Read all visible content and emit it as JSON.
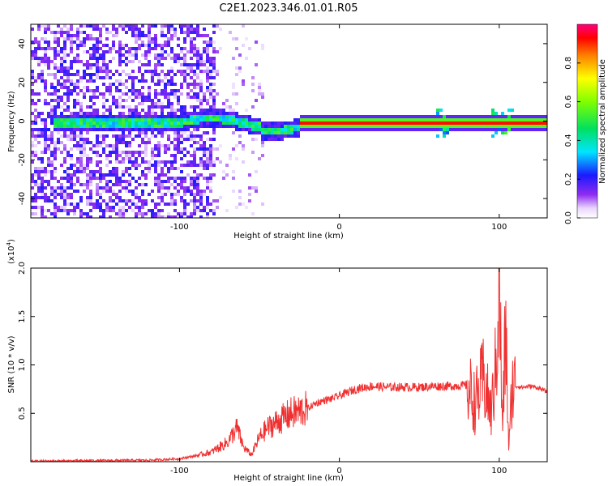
{
  "title": "C2E1.2023.346.01.01.R05",
  "chart_data": [
    {
      "type": "heatmap",
      "title": "C2E1.2023.346.01.01.R05",
      "xlabel": "Height of straight line (km)",
      "ylabel": "Frequency (Hz)",
      "xlim": [
        -193,
        130
      ],
      "ylim": [
        -50,
        50
      ],
      "x_ticks": [
        "-100",
        "0",
        "100"
      ],
      "x_tick_values": [
        -100,
        0,
        100
      ],
      "y_ticks": [
        "40",
        "20",
        "0",
        "-20",
        "-40"
      ],
      "y_tick_values": [
        40,
        20,
        0,
        -20,
        -40
      ],
      "colorbar": {
        "label": "Normalized spectral amplitude",
        "range": [
          0,
          1
        ],
        "ticks": [
          "0.0",
          "0.2",
          "0.4",
          "0.6",
          "0.8"
        ],
        "tick_values": [
          0.0,
          0.2,
          0.4,
          0.6,
          0.8
        ],
        "colormap": "rainbow (white → violet → blue → cyan → green → yellow → red → magenta)"
      },
      "features": {
        "noise_region_x": [
          -193,
          -78
        ],
        "sparse_noise_x": [
          -78,
          -48
        ],
        "signal_line_frequency": 0,
        "strong_signal_x": [
          -25,
          130
        ],
        "frequency_drift_x": [
          -100,
          -25
        ]
      }
    },
    {
      "type": "line",
      "xlabel": "Height of straight line (km)",
      "ylabel": "SNR (10 * v/v)",
      "y_multiplier": "(x10^4)",
      "y_multiplier_base": "(x10",
      "y_multiplier_exp": "4",
      "y_multiplier_close": ")",
      "xlim": [
        -193,
        130
      ],
      "ylim": [
        0,
        20000
      ],
      "x_ticks": [
        "-100",
        "0",
        "100"
      ],
      "x_tick_values": [
        -100,
        0,
        100
      ],
      "y_ticks": [
        "2.0",
        "1.5",
        "1.0",
        "0.5"
      ],
      "y_tick_values": [
        20000,
        15000,
        10000,
        5000
      ],
      "color": "#f03030",
      "series": [
        {
          "x": [
            -193,
            -160,
            -120,
            -100,
            -90,
            -80,
            -70,
            -64,
            -60,
            -55,
            -50,
            -45,
            -40,
            -35,
            -30,
            -25,
            -20,
            -15,
            -10,
            -5,
            0,
            10,
            20,
            30,
            40,
            50,
            60,
            70,
            80,
            85,
            90,
            95,
            98,
            100,
            102,
            104,
            106,
            108,
            110,
            115,
            120,
            125,
            130
          ],
          "y": [
            50,
            100,
            150,
            300,
            600,
            1000,
            2000,
            3500,
            1500,
            700,
            2500,
            3500,
            4000,
            4500,
            5000,
            5200,
            5500,
            6000,
            6300,
            6500,
            6800,
            7500,
            7800,
            7700,
            7700,
            7700,
            7800,
            7800,
            7900,
            6000,
            8500,
            5000,
            10000,
            19000,
            3000,
            14000,
            1000,
            7700,
            7800,
            7700,
            7800,
            7600,
            7200
          ]
        }
      ]
    }
  ]
}
